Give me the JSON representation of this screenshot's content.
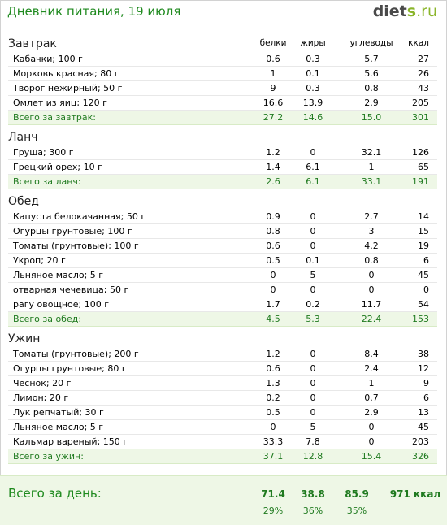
{
  "header": {
    "title": "Дневник питания, 19 июля",
    "logo_part1": "diet",
    "logo_part2": "s",
    "logo_part3": ".ru"
  },
  "columns": {
    "protein": "белки",
    "fat": "жиры",
    "carbs": "углеводы",
    "kcal": "ккал"
  },
  "meals": [
    {
      "title": "Завтрак",
      "items": [
        {
          "name": "Кабачки; 100 г",
          "protein": "0.6",
          "fat": "0.3",
          "carbs": "5.7",
          "kcal": "27"
        },
        {
          "name": "Морковь красная; 80 г",
          "protein": "1",
          "fat": "0.1",
          "carbs": "5.6",
          "kcal": "26"
        },
        {
          "name": "Творог нежирный; 50 г",
          "protein": "9",
          "fat": "0.3",
          "carbs": "0.8",
          "kcal": "43"
        },
        {
          "name": "Омлет из яиц; 120 г",
          "protein": "16.6",
          "fat": "13.9",
          "carbs": "2.9",
          "kcal": "205"
        }
      ],
      "total": {
        "label": "Всего за завтрак:",
        "protein": "27.2",
        "fat": "14.6",
        "carbs": "15.0",
        "kcal": "301"
      }
    },
    {
      "title": "Ланч",
      "items": [
        {
          "name": "Груша; 300 г",
          "protein": "1.2",
          "fat": "0",
          "carbs": "32.1",
          "kcal": "126"
        },
        {
          "name": "Грецкий орех; 10 г",
          "protein": "1.4",
          "fat": "6.1",
          "carbs": "1",
          "kcal": "65"
        }
      ],
      "total": {
        "label": "Всего за ланч:",
        "protein": "2.6",
        "fat": "6.1",
        "carbs": "33.1",
        "kcal": "191"
      }
    },
    {
      "title": "Обед",
      "items": [
        {
          "name": "Капуста белокачанная; 50 г",
          "protein": "0.9",
          "fat": "0",
          "carbs": "2.7",
          "kcal": "14"
        },
        {
          "name": "Огурцы грунтовые; 100 г",
          "protein": "0.8",
          "fat": "0",
          "carbs": "3",
          "kcal": "15"
        },
        {
          "name": "Томаты (грунтовые); 100 г",
          "protein": "0.6",
          "fat": "0",
          "carbs": "4.2",
          "kcal": "19"
        },
        {
          "name": "Укроп; 20 г",
          "protein": "0.5",
          "fat": "0.1",
          "carbs": "0.8",
          "kcal": "6"
        },
        {
          "name": "Льняное масло; 5 г",
          "protein": "0",
          "fat": "5",
          "carbs": "0",
          "kcal": "45"
        },
        {
          "name": "отварная чечевица; 50 г",
          "protein": "0",
          "fat": "0",
          "carbs": "0",
          "kcal": "0"
        },
        {
          "name": "рагу овощное; 100 г",
          "protein": "1.7",
          "fat": "0.2",
          "carbs": "11.7",
          "kcal": "54"
        }
      ],
      "total": {
        "label": "Всего за обед:",
        "protein": "4.5",
        "fat": "5.3",
        "carbs": "22.4",
        "kcal": "153"
      }
    },
    {
      "title": "Ужин",
      "items": [
        {
          "name": "Томаты (грунтовые); 200 г",
          "protein": "1.2",
          "fat": "0",
          "carbs": "8.4",
          "kcal": "38"
        },
        {
          "name": "Огурцы грунтовые; 80 г",
          "protein": "0.6",
          "fat": "0",
          "carbs": "2.4",
          "kcal": "12"
        },
        {
          "name": "Чеснок; 20 г",
          "protein": "1.3",
          "fat": "0",
          "carbs": "1",
          "kcal": "9"
        },
        {
          "name": "Лимон; 20 г",
          "protein": "0.2",
          "fat": "0",
          "carbs": "0.7",
          "kcal": "6"
        },
        {
          "name": "Лук репчатый; 30 г",
          "protein": "0.5",
          "fat": "0",
          "carbs": "2.9",
          "kcal": "13"
        },
        {
          "name": "Льняное масло; 5 г",
          "protein": "0",
          "fat": "5",
          "carbs": "0",
          "kcal": "45"
        },
        {
          "name": "Кальмар вареный; 150 г",
          "protein": "33.3",
          "fat": "7.8",
          "carbs": "0",
          "kcal": "203"
        }
      ],
      "total": {
        "label": "Всего за ужин:",
        "protein": "37.1",
        "fat": "12.8",
        "carbs": "15.4",
        "kcal": "326"
      }
    }
  ],
  "day_total": {
    "label": "Всего за день:",
    "protein": "71.4",
    "fat": "38.8",
    "carbs": "85.9",
    "kcal": "971 ккал",
    "protein_pct": "29%",
    "fat_pct": "36%",
    "carbs_pct": "35%"
  }
}
